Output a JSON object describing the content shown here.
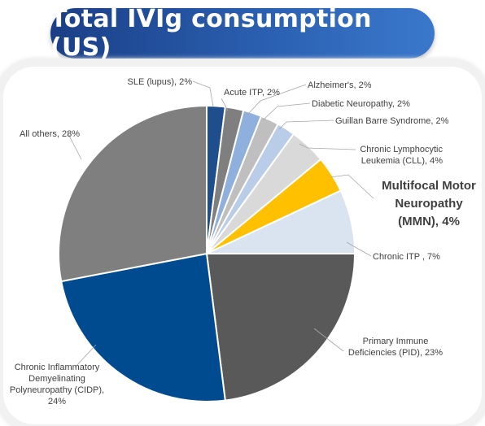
{
  "title": "Total IVIg consumption (US)",
  "chart_data": {
    "type": "pie",
    "title": "Total IVIg consumption (US)",
    "slices": [
      {
        "label": "SLE (lupus), 2%",
        "value": 2,
        "color": "#1f4e8c"
      },
      {
        "label": "Acute ITP, 2%",
        "value": 2,
        "color": "#7f7f7f"
      },
      {
        "label": "Alzheimer's, 2%",
        "value": 2,
        "color": "#8fb0dc"
      },
      {
        "label": "Diabetic Neuropathy, 2%",
        "value": 2,
        "color": "#bfbfbf"
      },
      {
        "label": "Guillan Barre Syndrome, 2%",
        "value": 2,
        "color": "#b9cde9"
      },
      {
        "label": [
          "Chronic Lymphocytic",
          "Leukemia (CLL), 4%"
        ],
        "value": 4,
        "color": "#d9d9d9"
      },
      {
        "label": [
          "Multifocal Motor",
          "Neuropathy",
          "(MMN), 4%"
        ],
        "value": 4,
        "color": "#ffc000",
        "emphasis": true
      },
      {
        "label": "Chronic ITP , 7%",
        "value": 7,
        "color": "#dae3f0"
      },
      {
        "label": [
          "Primary Immune",
          "Deficiencies (PID), 23%"
        ],
        "value": 23,
        "color": "#595959"
      },
      {
        "label": [
          "Chronic Inflammatory",
          "Demyelinating",
          "Polyneuropathy (CIDP),",
          "24%"
        ],
        "value": 24,
        "color": "#004a8f"
      },
      {
        "label": "All others, 28%",
        "value": 28,
        "color": "#7f7f7f"
      }
    ]
  }
}
